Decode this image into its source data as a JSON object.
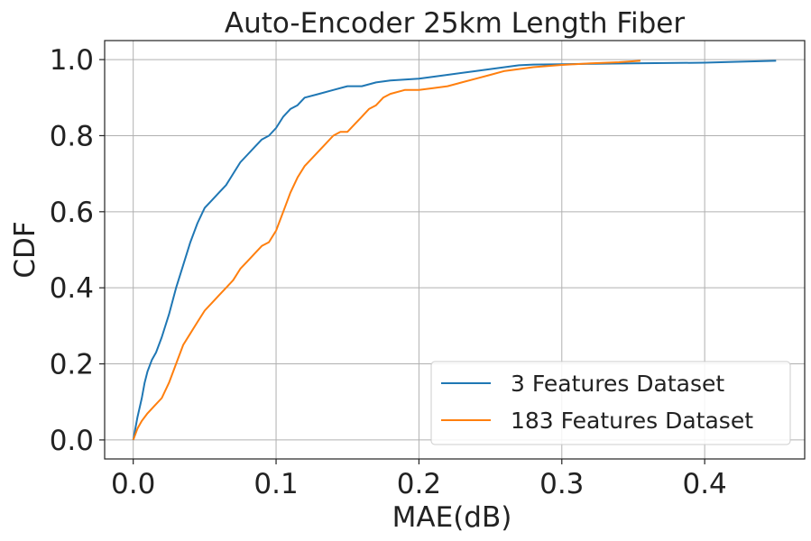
{
  "chart_data": {
    "type": "line",
    "title": "Auto-Encoder 25km Length Fiber",
    "xlabel": "MAE(dB)",
    "ylabel": "CDF",
    "xlim": [
      -0.02,
      0.47
    ],
    "ylim": [
      -0.05,
      1.05
    ],
    "xticks": [
      0.0,
      0.1,
      0.2,
      0.3,
      0.4
    ],
    "xtick_labels": [
      "0.0",
      "0.1",
      "0.2",
      "0.3",
      "0.4"
    ],
    "yticks": [
      0.0,
      0.2,
      0.4,
      0.6,
      0.8,
      1.0
    ],
    "ytick_labels": [
      "0.0",
      "0.2",
      "0.4",
      "0.6",
      "0.8",
      "1.0"
    ],
    "grid": true,
    "legend_position": "bottom-right",
    "series": [
      {
        "name": "3 Features Dataset",
        "color": "#1f77b4",
        "x": [
          0.0,
          0.003,
          0.006,
          0.008,
          0.01,
          0.013,
          0.016,
          0.02,
          0.025,
          0.03,
          0.035,
          0.04,
          0.045,
          0.05,
          0.055,
          0.06,
          0.065,
          0.07,
          0.075,
          0.08,
          0.085,
          0.09,
          0.095,
          0.1,
          0.105,
          0.11,
          0.115,
          0.12,
          0.13,
          0.14,
          0.15,
          0.16,
          0.17,
          0.18,
          0.2,
          0.22,
          0.24,
          0.25,
          0.26,
          0.27,
          0.28,
          0.3,
          0.35,
          0.4,
          0.42,
          0.45
        ],
        "y": [
          0.0,
          0.06,
          0.11,
          0.15,
          0.18,
          0.21,
          0.23,
          0.27,
          0.33,
          0.4,
          0.46,
          0.52,
          0.57,
          0.61,
          0.63,
          0.65,
          0.67,
          0.7,
          0.73,
          0.75,
          0.77,
          0.79,
          0.8,
          0.82,
          0.85,
          0.87,
          0.88,
          0.9,
          0.91,
          0.92,
          0.93,
          0.93,
          0.94,
          0.945,
          0.95,
          0.96,
          0.97,
          0.975,
          0.98,
          0.985,
          0.987,
          0.988,
          0.99,
          0.992,
          0.994,
          0.997
        ]
      },
      {
        "name": "183 Features Dataset",
        "color": "#ff7f0e",
        "x": [
          0.0,
          0.003,
          0.006,
          0.01,
          0.015,
          0.02,
          0.025,
          0.03,
          0.035,
          0.04,
          0.045,
          0.05,
          0.055,
          0.06,
          0.065,
          0.07,
          0.075,
          0.08,
          0.085,
          0.09,
          0.095,
          0.1,
          0.105,
          0.11,
          0.115,
          0.12,
          0.125,
          0.13,
          0.135,
          0.14,
          0.145,
          0.15,
          0.155,
          0.16,
          0.165,
          0.17,
          0.175,
          0.18,
          0.19,
          0.2,
          0.21,
          0.22,
          0.23,
          0.24,
          0.25,
          0.26,
          0.27,
          0.28,
          0.29,
          0.3,
          0.32,
          0.34,
          0.355
        ],
        "y": [
          0.0,
          0.03,
          0.05,
          0.07,
          0.09,
          0.11,
          0.15,
          0.2,
          0.25,
          0.28,
          0.31,
          0.34,
          0.36,
          0.38,
          0.4,
          0.42,
          0.45,
          0.47,
          0.49,
          0.51,
          0.52,
          0.55,
          0.6,
          0.65,
          0.69,
          0.72,
          0.74,
          0.76,
          0.78,
          0.8,
          0.81,
          0.81,
          0.83,
          0.85,
          0.87,
          0.88,
          0.9,
          0.91,
          0.92,
          0.92,
          0.925,
          0.93,
          0.94,
          0.95,
          0.96,
          0.97,
          0.975,
          0.98,
          0.983,
          0.986,
          0.99,
          0.993,
          0.997
        ]
      }
    ]
  }
}
